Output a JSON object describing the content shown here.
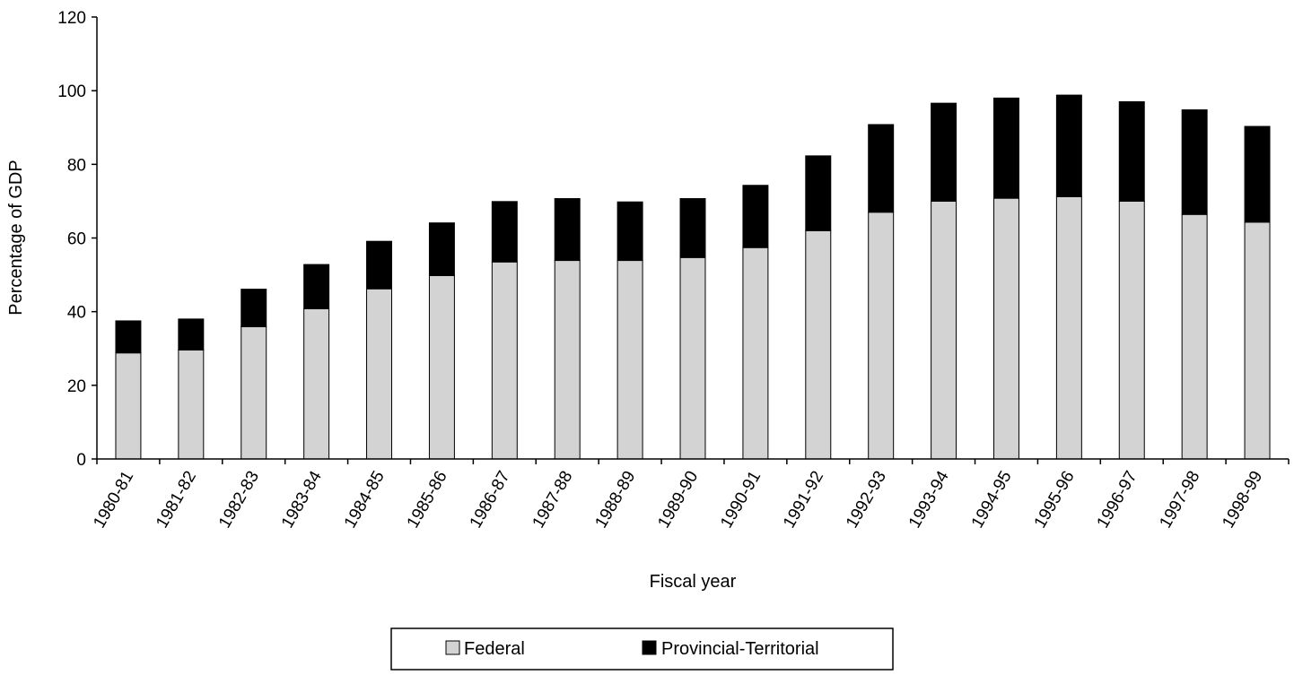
{
  "chart_data": {
    "type": "bar",
    "stacked": true,
    "title": "",
    "xlabel": "Fiscal year",
    "ylabel": "Percentage of GDP",
    "ylim": [
      0,
      120
    ],
    "yticks": [
      0,
      20,
      40,
      60,
      80,
      100,
      120
    ],
    "grid": false,
    "legend_position": "bottom",
    "categories": [
      "1980-81",
      "1981-82",
      "1982-83",
      "1983-84",
      "1984-85",
      "1985-86",
      "1986-87",
      "1987-88",
      "1988-89",
      "1989-90",
      "1990-91",
      "1991-92",
      "1992-93",
      "1993-94",
      "1994-95",
      "1995-96",
      "1996-97",
      "1997-98",
      "1998-99"
    ],
    "series": [
      {
        "name": "Federal",
        "color": "#d3d3d3",
        "values": [
          28.8,
          29.6,
          35.9,
          40.8,
          46.2,
          49.8,
          53.5,
          53.9,
          53.9,
          54.7,
          57.4,
          62.0,
          67.0,
          70.0,
          70.8,
          71.2,
          70.0,
          66.4,
          64.3
        ]
      },
      {
        "name": "Provincial-Territorial",
        "color": "#000000",
        "values": [
          8.7,
          8.4,
          10.2,
          12.0,
          12.9,
          14.3,
          16.4,
          16.8,
          15.9,
          16.0,
          16.9,
          20.3,
          23.8,
          26.6,
          27.2,
          27.6,
          27.0,
          28.4,
          26.0
        ]
      }
    ]
  }
}
